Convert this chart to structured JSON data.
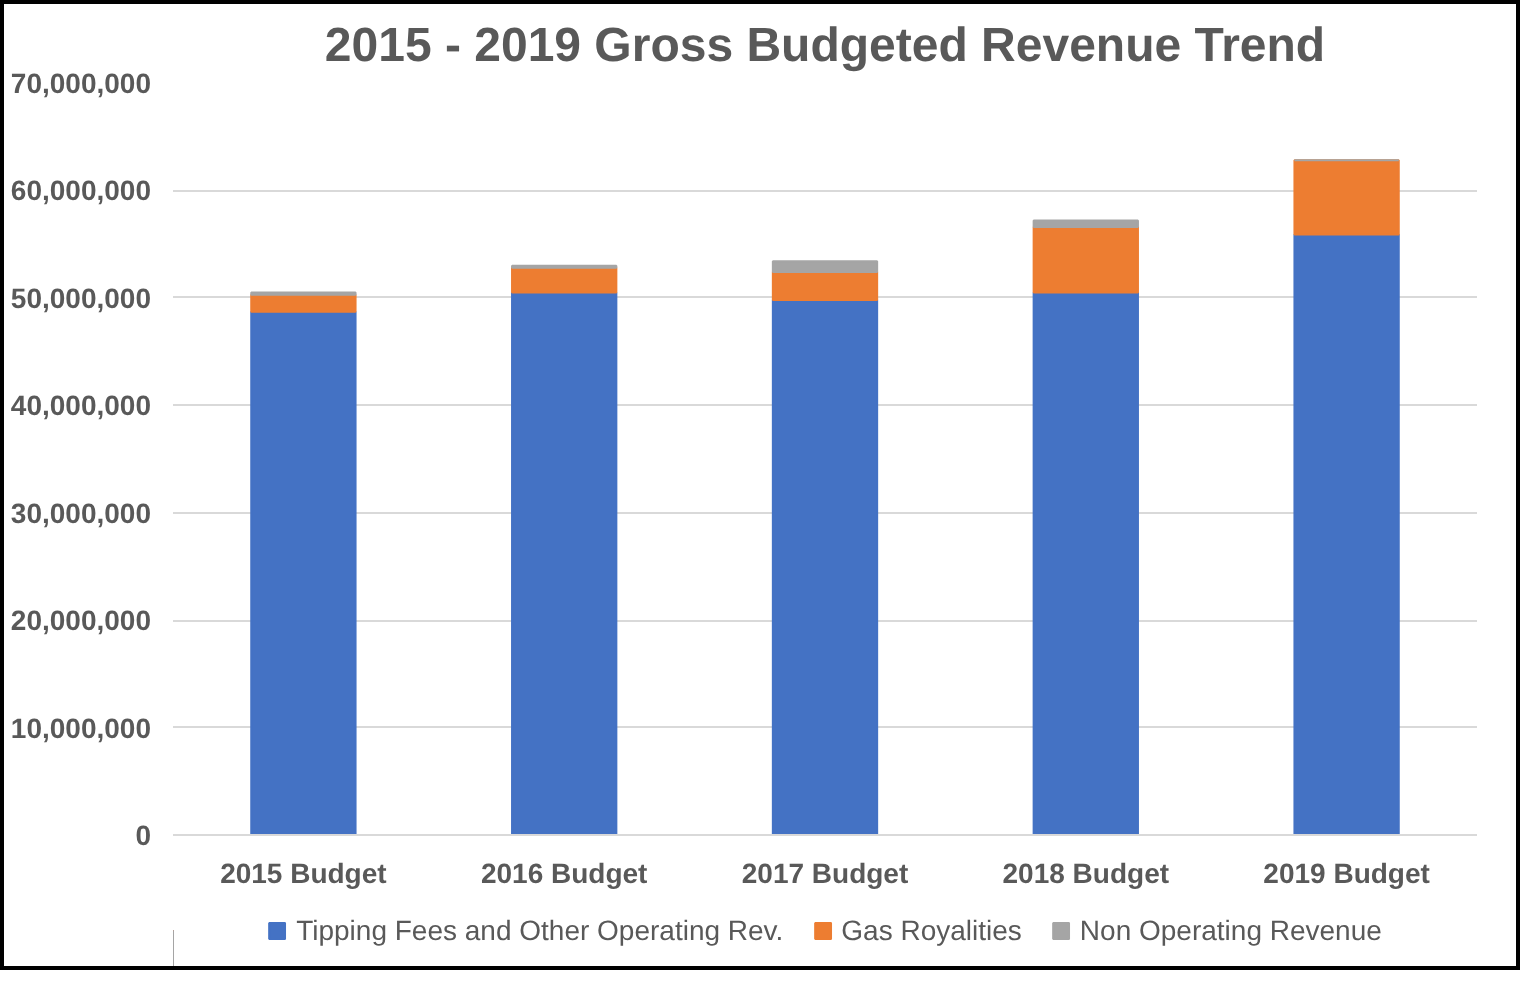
{
  "chart_data": {
    "type": "bar",
    "stacked": true,
    "title": "2015 - 2019 Gross Budgeted Revenue Trend",
    "categories": [
      "2015 Budget",
      "2016 Budget",
      "2017 Budget",
      "2018 Budget",
      "2019 Budget"
    ],
    "series": [
      {
        "name": "Tipping Fees and Other Operating Rev.",
        "color": "#4472c4",
        "values": [
          48700000,
          50500000,
          49800000,
          50500000,
          55900000
        ]
      },
      {
        "name": "Gas Royalities",
        "color": "#ed7d31",
        "values": [
          1600000,
          2300000,
          2600000,
          6100000,
          6900000
        ]
      },
      {
        "name": "Non Operating Revenue",
        "color": "#a5a5a5",
        "values": [
          200000,
          200000,
          1000000,
          600000,
          0
        ]
      }
    ],
    "ylim": [
      0,
      70000000
    ],
    "yticks": [
      {
        "value": 0,
        "label": "0"
      },
      {
        "value": 10000000,
        "label": "10,000,000"
      },
      {
        "value": 20000000,
        "label": "20,000,000"
      },
      {
        "value": 30000000,
        "label": "30,000,000"
      },
      {
        "value": 40000000,
        "label": "40,000,000"
      },
      {
        "value": 50000000,
        "label": "50,000,000"
      },
      {
        "value": 60000000,
        "label": "60,000,000"
      },
      {
        "value": 70000000,
        "label": "70,000,000"
      }
    ],
    "grid": "y",
    "legend": "bottom"
  }
}
